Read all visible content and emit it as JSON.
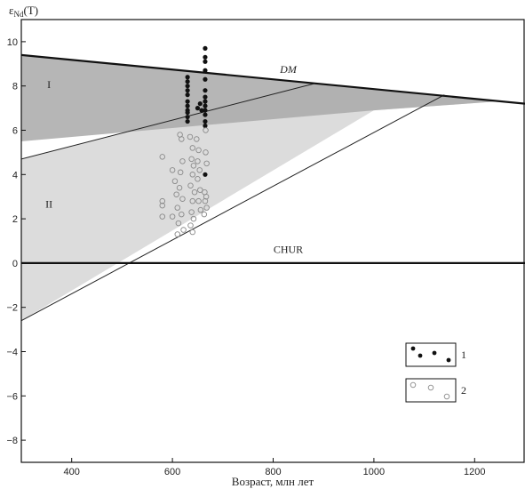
{
  "chart_data": {
    "type": "scatter",
    "title": "",
    "xlabel": "Возраст, млн лет",
    "ylabel_main": "ε",
    "ylabel_sub": "Nd",
    "ylabel_suffix": "(T)",
    "xlim": [
      300,
      1300
    ],
    "ylim": [
      -9,
      11
    ],
    "xticks": [
      400,
      600,
      800,
      1000,
      1200
    ],
    "yticks": [
      -8,
      -6,
      -4,
      -2,
      0,
      2,
      4,
      6,
      8,
      10
    ],
    "grid": false,
    "lines": [
      {
        "label": "DM",
        "x": [
          300,
          1300
        ],
        "y": [
          9.4,
          7.2
        ]
      },
      {
        "label": "CHUR",
        "x": [
          300,
          1300
        ],
        "y": [
          0,
          0
        ]
      }
    ],
    "regions": [
      {
        "label": "I",
        "polygon": [
          [
            300,
            9.4
          ],
          [
            1250,
            7.31
          ],
          [
            1000,
            6.9
          ],
          [
            300,
            5.5
          ]
        ]
      },
      {
        "label": "II",
        "polygon": [
          [
            300,
            4.7
          ],
          [
            880,
            8.1
          ],
          [
            1250,
            7.31
          ],
          [
            1000,
            6.9
          ],
          [
            300,
            -2.6
          ]
        ]
      }
    ],
    "region_lines": [
      {
        "x": [
          300,
          880
        ],
        "y": [
          4.7,
          8.1
        ]
      },
      {
        "x": [
          300,
          1140
        ],
        "y": [
          -2.6,
          7.6
        ]
      }
    ],
    "legend": [
      {
        "label": "1",
        "marker": "filled"
      },
      {
        "label": "2",
        "marker": "open"
      }
    ],
    "legend_position": "lower-right",
    "series": [
      {
        "label": "1",
        "marker": "filled",
        "points": [
          [
            630,
            8.4
          ],
          [
            630,
            8.2
          ],
          [
            630,
            8.0
          ],
          [
            630,
            7.8
          ],
          [
            630,
            7.6
          ],
          [
            630,
            7.3
          ],
          [
            630,
            7.1
          ],
          [
            630,
            6.9
          ],
          [
            630,
            6.8
          ],
          [
            630,
            6.6
          ],
          [
            630,
            6.4
          ],
          [
            665,
            9.7
          ],
          [
            665,
            9.3
          ],
          [
            665,
            9.1
          ],
          [
            665,
            8.7
          ],
          [
            665,
            8.3
          ],
          [
            665,
            7.8
          ],
          [
            665,
            7.5
          ],
          [
            665,
            7.3
          ],
          [
            665,
            7.1
          ],
          [
            665,
            6.9
          ],
          [
            665,
            6.7
          ],
          [
            665,
            6.4
          ],
          [
            665,
            6.2
          ],
          [
            665,
            4.0
          ],
          [
            650,
            7.0
          ],
          [
            655,
            7.2
          ],
          [
            658,
            6.9
          ]
        ]
      },
      {
        "label": "2",
        "marker": "open",
        "points": [
          [
            580,
            4.8
          ],
          [
            580,
            2.8
          ],
          [
            580,
            2.6
          ],
          [
            580,
            2.1
          ],
          [
            600,
            4.2
          ],
          [
            605,
            3.7
          ],
          [
            608,
            3.1
          ],
          [
            610,
            2.5
          ],
          [
            600,
            2.1
          ],
          [
            612,
            1.8
          ],
          [
            615,
            5.8
          ],
          [
            618,
            5.6
          ],
          [
            620,
            4.6
          ],
          [
            616,
            4.1
          ],
          [
            614,
            3.4
          ],
          [
            620,
            2.9
          ],
          [
            618,
            2.2
          ],
          [
            622,
            1.5
          ],
          [
            610,
            1.3
          ],
          [
            635,
            5.7
          ],
          [
            640,
            5.2
          ],
          [
            638,
            4.7
          ],
          [
            642,
            4.4
          ],
          [
            640,
            4.0
          ],
          [
            636,
            3.5
          ],
          [
            644,
            3.2
          ],
          [
            640,
            2.8
          ],
          [
            638,
            2.3
          ],
          [
            642,
            2.0
          ],
          [
            636,
            1.7
          ],
          [
            640,
            1.4
          ],
          [
            648,
            5.6
          ],
          [
            652,
            5.1
          ],
          [
            650,
            4.6
          ],
          [
            654,
            4.2
          ],
          [
            650,
            3.8
          ],
          [
            655,
            3.3
          ],
          [
            652,
            2.8
          ],
          [
            656,
            2.4
          ],
          [
            666,
            5.0
          ],
          [
            668,
            4.5
          ],
          [
            664,
            3.2
          ],
          [
            667,
            3.0
          ],
          [
            665,
            2.8
          ],
          [
            668,
            2.5
          ],
          [
            663,
            2.2
          ],
          [
            666,
            6.0
          ]
        ]
      }
    ],
    "annotations": [
      {
        "text": "DM",
        "x": 830,
        "y": 8.6,
        "style": "italic"
      },
      {
        "text": "CHUR",
        "x": 830,
        "y": 0.45,
        "style": "normal"
      },
      {
        "text": "I",
        "x": 355,
        "y": 7.9,
        "style": "normal"
      },
      {
        "text": "II",
        "x": 355,
        "y": 2.5,
        "style": "normal"
      }
    ],
    "colors": {
      "region_I": "#a9a9a9",
      "region_II": "#dcdcdc",
      "overlap": "#8f8f8f",
      "axis": "#111111",
      "filled_marker": "#111111",
      "open_marker": "#8a8a8a"
    }
  }
}
